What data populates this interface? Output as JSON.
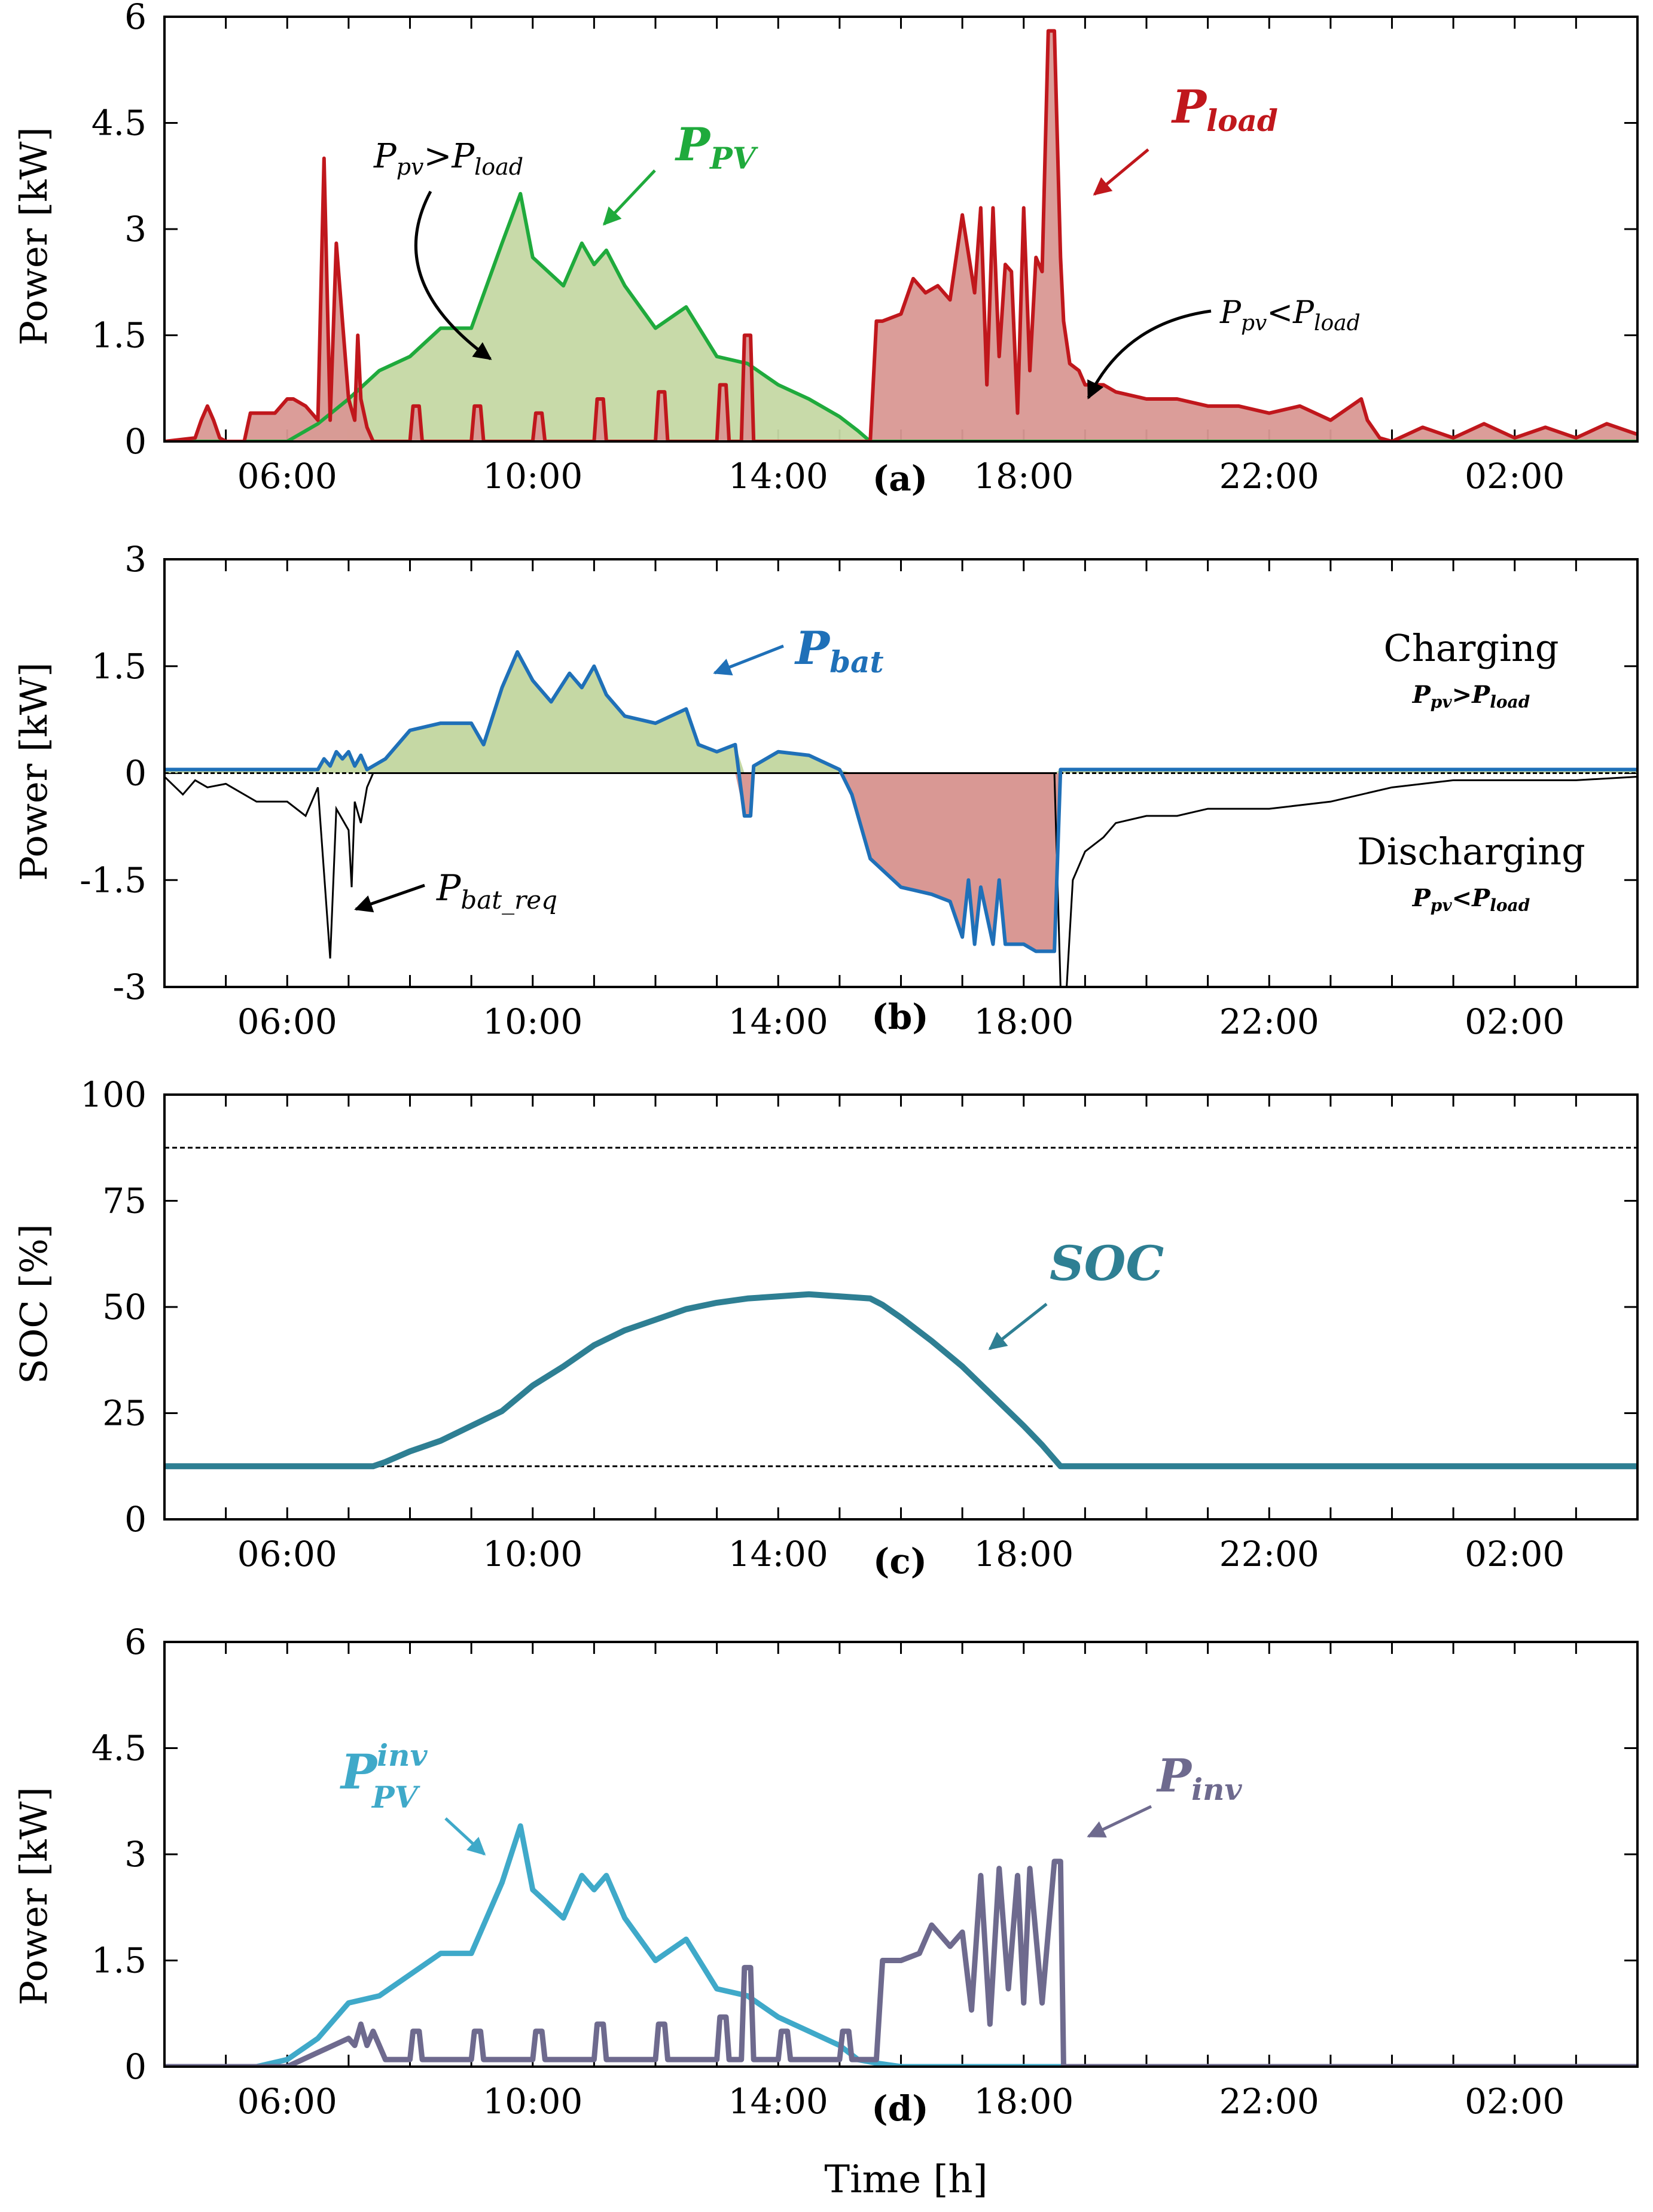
{
  "chart_data": [
    {
      "type": "area",
      "panel_label": "a",
      "ylabel": "Power [kW]",
      "ylim": [
        0,
        6
      ],
      "yticks": [
        "0",
        "1.5",
        "3",
        "4.5",
        "6"
      ],
      "xlim": [
        "04:00",
        "04:00"
      ],
      "xticks": [
        "06:00",
        "10:00",
        "14:00",
        "18:00",
        "22:00",
        "02:00"
      ],
      "series": [
        {
          "name": "P_PV",
          "label": "P",
          "label_sub": "PV",
          "color": "#1faa3c",
          "fill": "#c5d8a4",
          "x": [
            4.0,
            6.0,
            6.5,
            7.0,
            7.5,
            8.0,
            8.5,
            9.0,
            9.5,
            9.8,
            10.0,
            10.5,
            10.8,
            11.0,
            11.2,
            11.5,
            12.0,
            12.5,
            13.0,
            13.5,
            14.0,
            14.5,
            15.0,
            15.3,
            15.5,
            28.0
          ],
          "y": [
            0,
            0,
            0.25,
            0.6,
            1.0,
            1.2,
            1.6,
            1.6,
            2.8,
            3.5,
            2.6,
            2.2,
            2.8,
            2.5,
            2.7,
            2.2,
            1.6,
            1.9,
            1.2,
            1.1,
            0.8,
            0.6,
            0.35,
            0.15,
            0,
            0
          ]
        },
        {
          "name": "P_load",
          "label": "P",
          "label_sub": "load",
          "color": "#c0171c",
          "fill": "#d99894",
          "x": [
            4.0,
            4.5,
            4.6,
            4.7,
            4.8,
            4.9,
            5.0,
            5.3,
            5.4,
            5.8,
            6.0,
            6.1,
            6.3,
            6.5,
            6.6,
            6.7,
            6.8,
            7.0,
            7.1,
            7.15,
            7.2,
            7.3,
            7.4,
            8.0,
            8.05,
            8.15,
            8.2,
            9.0,
            9.05,
            9.15,
            9.2,
            10.0,
            10.05,
            10.15,
            10.2,
            11.0,
            11.05,
            11.15,
            11.2,
            12.0,
            12.05,
            12.15,
            12.2,
            13.0,
            13.05,
            13.15,
            13.2,
            13.4,
            13.45,
            13.55,
            13.6,
            14.0,
            15.0,
            15.5,
            15.6,
            15.7,
            16.0,
            16.2,
            16.4,
            16.6,
            16.8,
            17.0,
            17.2,
            17.3,
            17.4,
            17.5,
            17.6,
            17.7,
            17.8,
            17.9,
            18.0,
            18.1,
            18.2,
            18.3,
            18.4,
            18.5,
            18.6,
            18.65,
            18.75,
            18.9,
            19.0,
            19.3,
            19.5,
            20.0,
            20.5,
            21.0,
            21.5,
            22.0,
            22.5,
            23.0,
            23.5,
            23.6,
            23.8,
            24.0,
            24.5,
            25.0,
            25.5,
            26.0,
            26.5,
            27.0,
            27.5,
            28.0
          ],
          "y": [
            0,
            0.05,
            0.3,
            0.5,
            0.3,
            0.05,
            0,
            0,
            0.4,
            0.4,
            0.6,
            0.6,
            0.5,
            0.3,
            4.0,
            0.3,
            2.8,
            0.6,
            0.3,
            1.5,
            0.6,
            0.2,
            0,
            0,
            0.5,
            0.5,
            0,
            0,
            0.5,
            0.5,
            0,
            0,
            0.4,
            0.4,
            0,
            0,
            0.6,
            0.6,
            0,
            0,
            0.7,
            0.7,
            0,
            0,
            0.8,
            0.8,
            0,
            0,
            1.5,
            1.5,
            0,
            0,
            0,
            0,
            1.7,
            1.7,
            1.8,
            2.3,
            2.1,
            2.2,
            2.0,
            3.2,
            2.1,
            3.3,
            0.8,
            3.3,
            1.2,
            2.5,
            2.4,
            0.4,
            3.3,
            1.0,
            2.6,
            2.4,
            5.8,
            5.8,
            2.6,
            1.7,
            1.1,
            1.0,
            0.8,
            0.8,
            0.7,
            0.6,
            0.6,
            0.5,
            0.5,
            0.4,
            0.5,
            0.3,
            0.6,
            0.3,
            0.05,
            0,
            0.2,
            0.05,
            0.25,
            0.05,
            0.2,
            0.05,
            0.25,
            0.1
          ]
        }
      ],
      "annotations": [
        {
          "text": "P",
          "sub": "pv",
          "op": ">",
          "text2": "P",
          "sub2": "load"
        },
        {
          "text": "P",
          "sub": "pv",
          "op": "<",
          "text2": "P",
          "sub2": "load"
        }
      ]
    },
    {
      "type": "area",
      "panel_label": "b",
      "ylabel": "Power [kW]",
      "ylim": [
        -3,
        3
      ],
      "yticks": [
        "-3",
        "-1.5",
        "0",
        "1.5",
        "3"
      ],
      "xticks": [
        "06:00",
        "10:00",
        "14:00",
        "18:00",
        "22:00",
        "02:00"
      ],
      "series": [
        {
          "name": "P_bat",
          "label": "P",
          "label_sub": "bat",
          "color": "#1f70b8",
          "x": [
            4.0,
            6.5,
            6.6,
            6.7,
            6.8,
            6.9,
            7.0,
            7.1,
            7.2,
            7.3,
            7.4,
            7.6,
            8.0,
            8.5,
            9.0,
            9.2,
            9.5,
            9.75,
            10.0,
            10.3,
            10.6,
            10.8,
            11.0,
            11.2,
            11.5,
            12.0,
            12.5,
            12.7,
            13.0,
            13.3,
            13.45,
            13.55,
            13.6,
            14.0,
            14.5,
            15.0,
            15.2,
            15.5,
            16.0,
            16.5,
            16.8,
            17.0,
            17.1,
            17.2,
            17.3,
            17.5,
            17.6,
            17.7,
            17.8,
            18.0,
            18.2,
            18.4,
            18.5,
            18.6,
            28.0
          ],
          "y": [
            0.05,
            0.05,
            0.2,
            0.1,
            0.3,
            0.2,
            0.3,
            0.1,
            0.25,
            0.05,
            0.1,
            0.2,
            0.6,
            0.7,
            0.7,
            0.4,
            1.2,
            1.7,
            1.3,
            1.0,
            1.4,
            1.2,
            1.5,
            1.1,
            0.8,
            0.7,
            0.9,
            0.4,
            0.3,
            0.4,
            -0.6,
            -0.6,
            0.1,
            0.3,
            0.25,
            0.05,
            -0.3,
            -1.2,
            -1.6,
            -1.7,
            -1.8,
            -2.3,
            -1.5,
            -2.4,
            -1.6,
            -2.4,
            -1.5,
            -2.4,
            -2.4,
            -2.4,
            -2.5,
            -2.5,
            -2.5,
            0.05,
            0.05
          ]
        },
        {
          "name": "P_bat_req",
          "label": "P",
          "label_sub": "bat_req",
          "color": "#000000",
          "x": [
            4.0,
            4.3,
            4.5,
            4.7,
            5.0,
            5.5,
            6.0,
            6.3,
            6.5,
            6.7,
            6.8,
            7.0,
            7.05,
            7.1,
            7.2,
            7.3,
            7.4,
            8.0,
            8.5,
            9.0,
            9.5,
            10.0,
            10.5,
            11.0,
            11.5,
            12.0,
            12.5,
            13.0,
            13.5,
            14.0,
            14.5,
            15.0,
            15.5,
            16.0,
            16.5,
            17.0,
            17.5,
            18.0,
            18.5,
            18.6,
            18.7,
            18.8,
            19.0,
            19.3,
            19.5,
            20.0,
            20.5,
            21.0,
            22.0,
            23.0,
            24.0,
            25.0,
            26.0,
            27.0,
            28.0
          ],
          "y": [
            -0.05,
            -0.3,
            -0.1,
            -0.2,
            -0.15,
            -0.4,
            -0.4,
            -0.6,
            -0.2,
            -2.6,
            -0.5,
            -0.8,
            -1.6,
            -0.4,
            -0.7,
            -0.2,
            0,
            0,
            0,
            0,
            0,
            0,
            0,
            0,
            0,
            0,
            0,
            0,
            0,
            0,
            0,
            0,
            0,
            0,
            0,
            0,
            0,
            0,
            0,
            -3.0,
            -3.0,
            -1.5,
            -1.1,
            -0.9,
            -0.7,
            -0.6,
            -0.6,
            -0.5,
            -0.5,
            -0.4,
            -0.2,
            -0.1,
            -0.1,
            -0.1,
            -0.05
          ]
        }
      ],
      "text_labels": {
        "charging": "Charging",
        "discharging": "Discharging"
      },
      "charging_condition": {
        "text": "P",
        "sub": "pv",
        "op": ">",
        "text2": "P",
        "sub2": "load"
      },
      "discharging_condition": {
        "text": "P",
        "sub": "pv",
        "op": "<",
        "text2": "P",
        "sub2": "load"
      }
    },
    {
      "type": "line",
      "panel_label": "c",
      "ylabel": "SOC [%]",
      "ylim": [
        0,
        100
      ],
      "yticks": [
        "0",
        "25",
        "50",
        "75",
        "100"
      ],
      "xticks": [
        "06:00",
        "10:00",
        "14:00",
        "18:00",
        "22:00",
        "02:00"
      ],
      "reference_lines": [
        {
          "y": 87.5,
          "x_from": 4.0,
          "x_to": 28.0,
          "style": "dashed"
        },
        {
          "y": 12.5,
          "x_from": 7.5,
          "x_to": 18.5,
          "style": "dashed"
        }
      ],
      "series": [
        {
          "name": "SOC",
          "label": "SOC",
          "color": "#2e7f93",
          "x": [
            4.0,
            7.4,
            7.6,
            8.0,
            8.5,
            9.0,
            9.5,
            10.0,
            10.5,
            11.0,
            11.5,
            12.0,
            12.5,
            13.0,
            13.5,
            14.0,
            14.5,
            15.0,
            15.5,
            15.7,
            16.0,
            16.5,
            17.0,
            17.5,
            18.0,
            18.3,
            18.6,
            28.0
          ],
          "y": [
            12.5,
            12.5,
            13.5,
            16.0,
            18.5,
            22.0,
            25.5,
            31.5,
            36.0,
            41.0,
            44.5,
            47.0,
            49.5,
            51.0,
            52.0,
            52.5,
            53.0,
            52.5,
            52.0,
            50.5,
            47.5,
            42.0,
            36.0,
            29.0,
            22.0,
            17.5,
            12.5,
            12.5
          ]
        }
      ]
    },
    {
      "type": "line",
      "panel_label": "d",
      "ylabel": "Power [kW]",
      "xlabel": "Time [h]",
      "ylim": [
        0,
        6
      ],
      "yticks": [
        "0",
        "1.5",
        "3",
        "4.5",
        "6"
      ],
      "xticks": [
        "06:00",
        "10:00",
        "14:00",
        "18:00",
        "22:00",
        "02:00"
      ],
      "series": [
        {
          "name": "P_PV_inv",
          "label": "P",
          "label_sub": "PV",
          "label_sup": "inv",
          "color": "#3fa9c9",
          "x": [
            4.0,
            5.5,
            6.0,
            6.5,
            7.0,
            7.5,
            8.0,
            8.5,
            9.0,
            9.5,
            9.8,
            10.0,
            10.5,
            10.8,
            11.0,
            11.2,
            11.5,
            12.0,
            12.5,
            13.0,
            13.5,
            14.0,
            14.5,
            15.0,
            15.3,
            15.6,
            16.0,
            28.0
          ],
          "y": [
            0,
            0,
            0.1,
            0.4,
            0.9,
            1.0,
            1.3,
            1.6,
            1.6,
            2.6,
            3.4,
            2.5,
            2.1,
            2.7,
            2.5,
            2.7,
            2.1,
            1.5,
            1.8,
            1.1,
            1.0,
            0.7,
            0.5,
            0.3,
            0.1,
            0.05,
            0,
            0
          ]
        },
        {
          "name": "P_inv",
          "label": "P",
          "label_sub": "inv",
          "color": "#6e6a8e",
          "x": [
            4.0,
            6.0,
            6.5,
            7.0,
            7.1,
            7.2,
            7.3,
            7.4,
            7.6,
            8.0,
            8.05,
            8.15,
            8.2,
            9.0,
            9.05,
            9.15,
            9.2,
            10.0,
            10.05,
            10.15,
            10.2,
            11.0,
            11.05,
            11.15,
            11.2,
            12.0,
            12.05,
            12.15,
            12.2,
            13.0,
            13.05,
            13.15,
            13.2,
            13.4,
            13.45,
            13.55,
            13.6,
            14.0,
            14.05,
            14.15,
            14.2,
            15.0,
            15.05,
            15.15,
            15.2,
            15.6,
            15.7,
            16.0,
            16.3,
            16.5,
            16.8,
            17.0,
            17.15,
            17.3,
            17.45,
            17.6,
            17.75,
            17.9,
            18.0,
            18.1,
            18.3,
            18.5,
            18.6,
            18.65,
            28.0
          ],
          "y": [
            0,
            0,
            0.2,
            0.4,
            0.3,
            0.6,
            0.3,
            0.5,
            0.1,
            0.1,
            0.5,
            0.5,
            0.1,
            0.1,
            0.5,
            0.5,
            0.1,
            0.1,
            0.5,
            0.5,
            0.1,
            0.1,
            0.6,
            0.6,
            0.1,
            0.1,
            0.6,
            0.6,
            0.1,
            0.1,
            0.7,
            0.7,
            0.1,
            0.1,
            1.4,
            1.4,
            0.1,
            0.1,
            0.5,
            0.5,
            0.1,
            0.1,
            0.5,
            0.5,
            0.1,
            0.1,
            1.5,
            1.5,
            1.6,
            2.0,
            1.7,
            1.9,
            0.8,
            2.7,
            0.6,
            2.8,
            1.1,
            2.7,
            0.9,
            2.8,
            0.9,
            2.9,
            2.9,
            0,
            0
          ]
        }
      ]
    }
  ]
}
